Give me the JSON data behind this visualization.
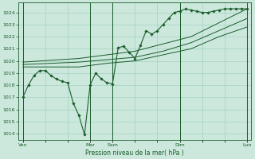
{
  "title": "",
  "xlabel": "Pression niveau de la mer( hPa )",
  "ylabel": "",
  "ylim": [
    1013.5,
    1024.8
  ],
  "yticks": [
    1014,
    1015,
    1016,
    1017,
    1018,
    1019,
    1020,
    1021,
    1022,
    1023,
    1024
  ],
  "xtick_labels": [
    "Ven",
    "",
    "",
    "Mar",
    "Sam",
    "",
    "",
    "Dim",
    "",
    "",
    "Lun"
  ],
  "xtick_positions": [
    0,
    16,
    32,
    48,
    64,
    80,
    96,
    112,
    128,
    144,
    160
  ],
  "background_color": "#cce8dd",
  "grid_color": "#99ccbb",
  "line_color": "#1a5c2a",
  "line1_x": [
    0,
    4,
    8,
    12,
    16,
    20,
    24,
    28,
    32,
    36,
    40,
    44,
    48,
    52,
    56,
    60,
    64,
    68,
    72,
    76,
    80,
    84,
    88,
    92,
    96,
    100,
    104,
    108,
    112,
    116,
    120,
    124,
    128,
    132,
    136,
    140,
    144,
    148,
    152,
    156,
    160
  ],
  "line1_y": [
    1017.0,
    1018.0,
    1018.8,
    1019.2,
    1019.2,
    1018.8,
    1018.5,
    1018.3,
    1018.2,
    1016.5,
    1015.5,
    1013.9,
    1018.0,
    1019.0,
    1018.5,
    1018.2,
    1018.1,
    1021.1,
    1021.2,
    1020.7,
    1020.2,
    1021.3,
    1022.5,
    1022.2,
    1022.5,
    1023.0,
    1023.5,
    1024.0,
    1024.1,
    1024.3,
    1024.2,
    1024.1,
    1024.0,
    1024.0,
    1024.1,
    1024.2,
    1024.3,
    1024.3,
    1024.3,
    1024.3,
    1024.3
  ],
  "line2_x": [
    0,
    20,
    40,
    60,
    80,
    100,
    120,
    140,
    160
  ],
  "line2_y": [
    1019.5,
    1019.5,
    1019.5,
    1019.8,
    1020.0,
    1020.5,
    1021.0,
    1022.0,
    1022.8
  ],
  "line3_x": [
    0,
    20,
    40,
    60,
    80,
    100,
    120,
    140,
    160
  ],
  "line3_y": [
    1019.7,
    1019.8,
    1019.9,
    1020.1,
    1020.3,
    1020.8,
    1021.5,
    1022.5,
    1023.5
  ],
  "line4_x": [
    0,
    40,
    80,
    120,
    160
  ],
  "line4_y": [
    1019.9,
    1020.2,
    1020.8,
    1022.0,
    1024.3
  ]
}
